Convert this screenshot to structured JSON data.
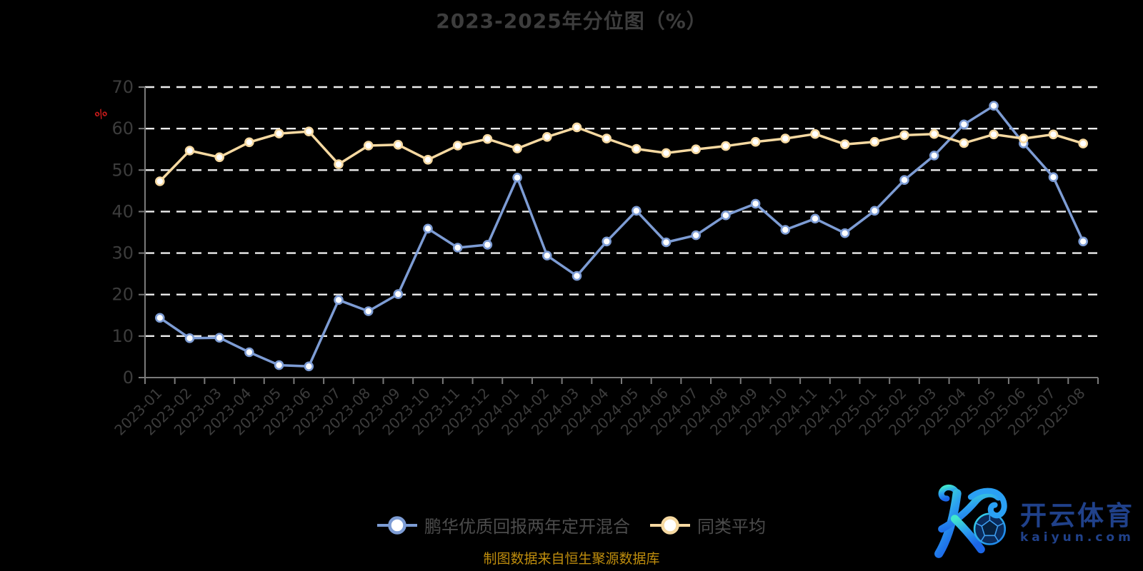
{
  "title": "2023-2025年分位图（%）",
  "footnote": "制图数据来自恒生聚源数据库",
  "watermark": {
    "brand": "开云体育",
    "domain": "kaiyun.com"
  },
  "colors": {
    "background": "#000000",
    "grid_line": "#EDEDED",
    "axis_line": "#7A7A7A",
    "tick_label": "#3C3C3C",
    "title_text": "#3D3D3D",
    "legend_text": "#4C4C4C",
    "footnote_text": "#BF8D0D",
    "axis_name_red": "#C31A1A",
    "marker_fill": "#FFFFFF",
    "watermark_blue": "#20418A",
    "logo_gradient_top": "#40E7CD",
    "logo_gradient_bottom": "#1B66E8"
  },
  "chart_data": {
    "type": "line",
    "title": "2023-2025年分位图（%）",
    "ylabel": "%",
    "xlabel": "",
    "ylim": [
      0,
      70
    ],
    "ytick_interval": 10,
    "grid": "horizontal-dashed",
    "legend_position": "bottom",
    "categories": [
      "2023-01",
      "2023-02",
      "2023-03",
      "2023-04",
      "2023-05",
      "2023-06",
      "2023-07",
      "2023-08",
      "2023-09",
      "2023-10",
      "2023-11",
      "2023-12",
      "2024-01",
      "2024-02",
      "2024-03",
      "2024-04",
      "2024-05",
      "2024-06",
      "2024-07",
      "2024-08",
      "2024-09",
      "2024-10",
      "2024-11",
      "2024-12",
      "2025-01",
      "2025-02",
      "2025-03",
      "2025-04",
      "2025-05",
      "2025-06",
      "2025-07",
      "2025-08"
    ],
    "series": [
      {
        "name": "鹏华优质回报两年定开混合",
        "color": "#7D9CD4",
        "values": [
          14.4,
          9.5,
          9.6,
          6.1,
          3.0,
          2.7,
          18.7,
          16.0,
          20.1,
          35.9,
          31.3,
          32.0,
          48.2,
          29.4,
          24.5,
          32.8,
          40.2,
          32.6,
          34.3,
          39.1,
          41.9,
          35.6,
          38.3,
          34.8,
          40.2,
          47.6,
          53.5,
          61.0,
          65.5,
          56.4,
          48.3,
          32.8
        ]
      },
      {
        "name": "同类平均",
        "color": "#F6D9A1",
        "values": [
          47.3,
          54.7,
          53.1,
          56.7,
          58.8,
          59.3,
          51.4,
          55.9,
          56.1,
          52.5,
          55.9,
          57.5,
          55.2,
          58.0,
          60.3,
          57.6,
          55.1,
          54.1,
          55.0,
          55.8,
          56.8,
          57.6,
          58.7,
          56.2,
          56.8,
          58.4,
          58.7,
          56.5,
          58.6,
          57.6,
          58.6,
          56.4
        ]
      }
    ]
  }
}
